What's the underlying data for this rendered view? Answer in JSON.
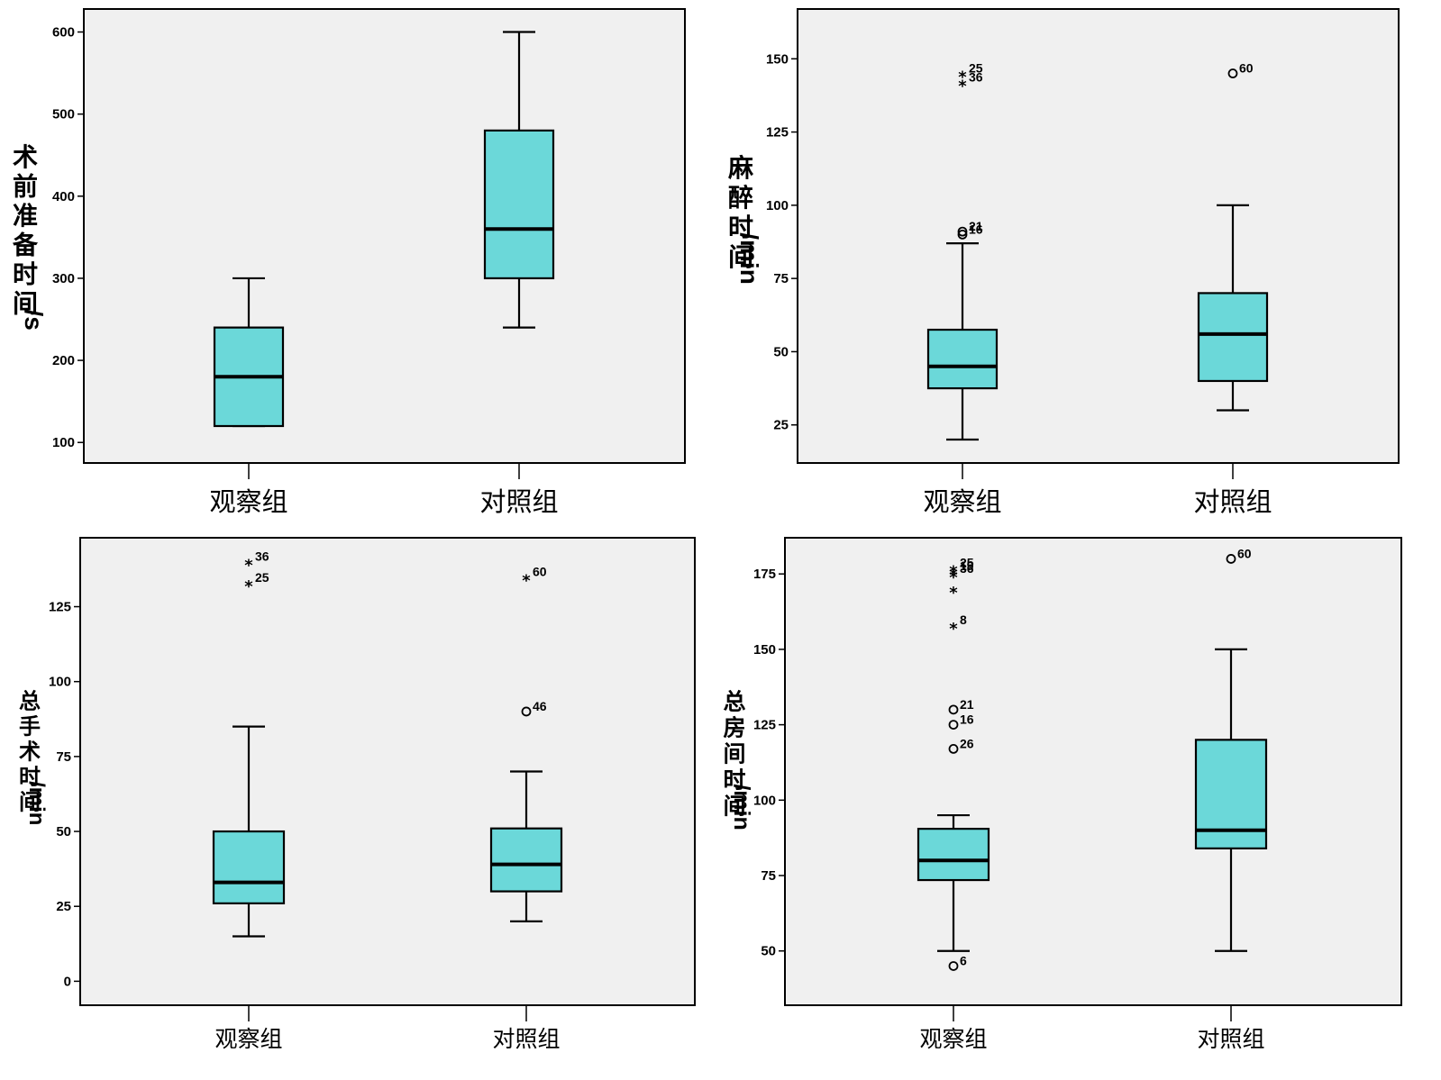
{
  "colors": {
    "box_fill": "#6bd8d9",
    "plot_bg": "#f0f0f0",
    "axis": "#000000"
  },
  "chart_data": [
    {
      "type": "box",
      "ylabel": "术前准备时间/s",
      "categories": [
        "观察组",
        "对照组"
      ],
      "ylim": [
        75,
        628
      ],
      "yticks": [
        100,
        200,
        300,
        400,
        500,
        600
      ],
      "series": [
        {
          "name": "观察组",
          "min": 120,
          "q1": 120,
          "median": 180,
          "q3": 240,
          "max": 300,
          "outliers": []
        },
        {
          "name": "对照组",
          "min": 240,
          "q1": 300,
          "median": 360,
          "q3": 480,
          "max": 600,
          "outliers": []
        }
      ]
    },
    {
      "type": "box",
      "ylabel": "麻醉时间/min",
      "categories": [
        "观察组",
        "对照组"
      ],
      "ylim": [
        12,
        167
      ],
      "yticks": [
        25,
        50,
        75,
        100,
        125,
        150
      ],
      "series": [
        {
          "name": "观察组",
          "min": 20,
          "q1": 37.5,
          "median": 45,
          "q3": 57.5,
          "max": 87,
          "outliers": [
            {
              "value": 145,
              "label": "25",
              "kind": "extreme"
            },
            {
              "value": 142,
              "label": "36",
              "kind": "extreme"
            },
            {
              "value": 91,
              "label": "21",
              "kind": "outlier"
            },
            {
              "value": 90,
              "label": "16",
              "kind": "outlier"
            }
          ]
        },
        {
          "name": "对照组",
          "min": 30,
          "q1": 40,
          "median": 56,
          "q3": 70,
          "max": 100,
          "outliers": [
            {
              "value": 145,
              "label": "60",
              "kind": "outlier"
            }
          ]
        }
      ]
    },
    {
      "type": "box",
      "ylabel": "总手术时间/min",
      "categories": [
        "观察组",
        "对照组"
      ],
      "ylim": [
        -8,
        148
      ],
      "yticks": [
        0,
        25,
        50,
        75,
        100,
        125
      ],
      "series": [
        {
          "name": "观察组",
          "min": 15,
          "q1": 26,
          "median": 33,
          "q3": 50,
          "max": 85,
          "outliers": [
            {
              "value": 140,
              "label": "36",
              "kind": "extreme"
            },
            {
              "value": 133,
              "label": "25",
              "kind": "extreme"
            }
          ]
        },
        {
          "name": "对照组",
          "min": 20,
          "q1": 30,
          "median": 39,
          "q3": 51,
          "max": 70,
          "outliers": [
            {
              "value": 135,
              "label": "60",
              "kind": "extreme"
            },
            {
              "value": 90,
              "label": "46",
              "kind": "outlier"
            }
          ]
        }
      ]
    },
    {
      "type": "box",
      "ylabel": "总房间时间/min",
      "categories": [
        "观察组",
        "对照组"
      ],
      "ylim": [
        32,
        187
      ],
      "yticks": [
        50,
        75,
        100,
        125,
        150,
        175
      ],
      "series": [
        {
          "name": "观察组",
          "min": 50,
          "q1": 73.5,
          "median": 80,
          "q3": 90.5,
          "max": 95,
          "outliers": [
            {
              "value": 177,
              "label": "25",
              "kind": "extreme"
            },
            {
              "value": 176,
              "label": "19",
              "kind": "extreme"
            },
            {
              "value": 175,
              "label": "36",
              "kind": "extreme"
            },
            {
              "value": 170,
              "label": "",
              "kind": "extreme"
            },
            {
              "value": 158,
              "label": "8",
              "kind": "extreme"
            },
            {
              "value": 130,
              "label": "21",
              "kind": "outlier"
            },
            {
              "value": 125,
              "label": "16",
              "kind": "outlier"
            },
            {
              "value": 117,
              "label": "26",
              "kind": "outlier"
            },
            {
              "value": 45,
              "label": "6",
              "kind": "outlier"
            }
          ]
        },
        {
          "name": "对照组",
          "min": 50,
          "q1": 84,
          "median": 90,
          "q3": 120,
          "max": 150,
          "outliers": [
            {
              "value": 180,
              "label": "60",
              "kind": "outlier"
            }
          ]
        }
      ]
    }
  ]
}
